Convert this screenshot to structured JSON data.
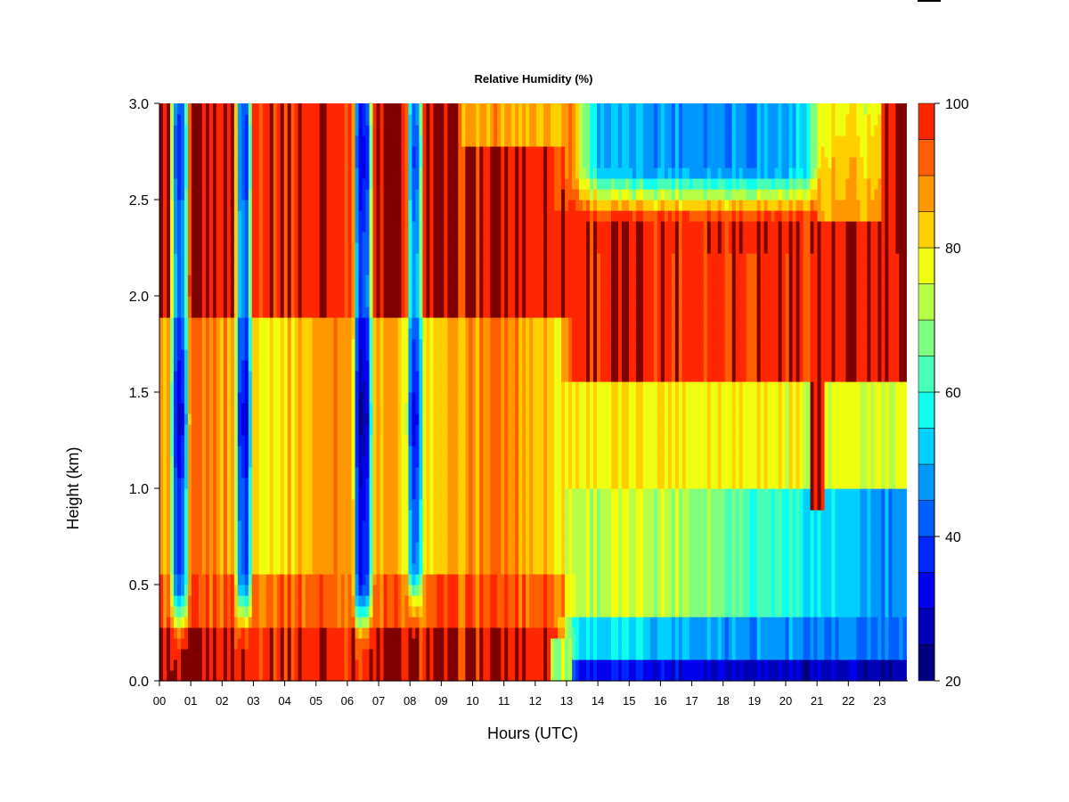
{
  "chart_data": {
    "type": "heatmap",
    "title": "Relative Humidity (%)",
    "xlabel": "Hours (UTC)",
    "ylabel": "Height (km)",
    "x_range_hours": [
      0,
      23.85
    ],
    "ylim": [
      0,
      3
    ],
    "x_ticks": [
      "00",
      "01",
      "02",
      "03",
      "04",
      "05",
      "06",
      "07",
      "08",
      "09",
      "10",
      "11",
      "12",
      "13",
      "14",
      "15",
      "16",
      "17",
      "18",
      "19",
      "20",
      "21",
      "22",
      "23"
    ],
    "y_ticks": [
      "0.0",
      "0.5",
      "1.0",
      "1.5",
      "2.0",
      "2.5",
      "3.0"
    ],
    "colorbar": {
      "range": [
        20,
        100
      ],
      "step": 5,
      "tick_labels": [
        "20",
        "40",
        "60",
        "80",
        "100"
      ],
      "levels": [
        20,
        25,
        30,
        35,
        40,
        45,
        50,
        55,
        60,
        65,
        70,
        75,
        80,
        85,
        90,
        95,
        100
      ],
      "colors": [
        "#00007f",
        "#0000b7",
        "#0000ef",
        "#0027ff",
        "#005fff",
        "#0097ff",
        "#00cfff",
        "#0fffef",
        "#47ffb7",
        "#7fff7f",
        "#b7ff47",
        "#efff0f",
        "#ffcf00",
        "#ff9700",
        "#ff5f00",
        "#ff2700",
        "#ef0000",
        "#b70000",
        "#7f0000"
      ]
    },
    "dry_columns": [
      {
        "center_hour": 0.65,
        "width_hours": 0.55,
        "top_km": 3.0,
        "base_km": 0.35,
        "min_rh": 28
      },
      {
        "center_hour": 2.7,
        "width_hours": 0.48,
        "top_km": 3.0,
        "base_km": 0.38,
        "min_rh": 30
      },
      {
        "center_hour": 6.5,
        "width_hours": 0.6,
        "top_km": 3.0,
        "base_km": 0.35,
        "min_rh": 26
      },
      {
        "center_hour": 8.15,
        "width_hours": 0.45,
        "top_km": 3.0,
        "base_km": 0.45,
        "min_rh": 30
      }
    ],
    "moist_column": {
      "center_hour": 21.0,
      "top_km": 1.55,
      "base_km": 0.9,
      "rh": 99
    },
    "upper_dry_layer": {
      "start_hour": 13.5,
      "end_hour": 21.0,
      "base_km": 2.4,
      "min_rh": 48
    }
  }
}
